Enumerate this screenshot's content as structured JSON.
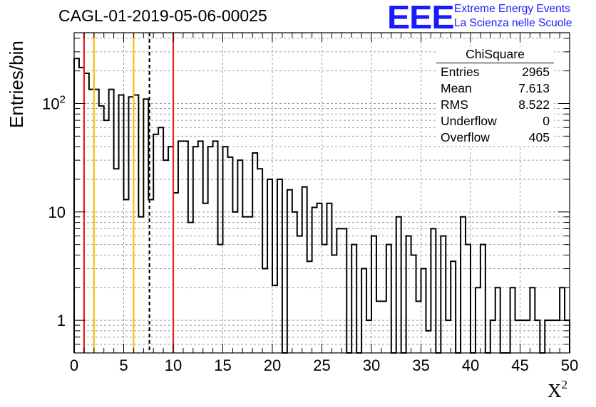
{
  "chart_data": {
    "type": "histogram",
    "title": "CAGL-01-2019-05-06-00025",
    "xlabel": "X",
    "xlabel_superscript": "2",
    "ylabel": "Entries/bin",
    "x_range": [
      0,
      50
    ],
    "y_range": [
      0.5,
      450
    ],
    "y_scale": "log",
    "bin_width": 0.5,
    "grid": true,
    "x_ticks": [
      "0",
      "5",
      "10",
      "15",
      "20",
      "25",
      "30",
      "35",
      "40",
      "45",
      "50"
    ],
    "y_ticks": [
      {
        "value": 1,
        "label": "1"
      },
      {
        "value": 10,
        "label": "10"
      },
      {
        "value": 100,
        "label": "10",
        "exp": "2"
      }
    ],
    "bin_values": [
      260,
      215,
      190,
      135,
      135,
      95,
      70,
      135,
      25,
      120,
      13,
      115,
      120,
      9,
      110,
      13,
      52,
      60,
      30,
      40,
      15,
      45,
      45,
      8,
      40,
      45,
      12,
      40,
      45,
      5,
      40,
      32,
      10,
      30,
      9,
      9,
      35,
      25,
      3,
      20,
      2.1,
      20,
      0.2,
      16,
      10,
      6,
      17,
      3.5,
      11,
      12,
      5,
      12,
      4,
      7,
      7,
      0.2,
      5,
      0.2,
      3,
      1,
      6,
      1.5,
      1.5,
      5,
      0.2,
      9,
      0.2,
      6,
      4,
      1.5,
      3,
      0.8,
      7,
      0.5,
      6,
      1,
      3.5,
      0.2,
      9,
      5,
      0.2,
      2,
      5,
      0.2,
      1,
      2,
      0.2,
      0.2,
      2,
      1,
      1,
      1,
      2,
      1,
      0.2,
      1,
      1,
      1,
      2,
      1
    ],
    "vertical_lines": [
      {
        "x": 1.0,
        "color": "#e8221e",
        "style": "solid"
      },
      {
        "x": 2.0,
        "color": "#f2c10f",
        "style": "solid"
      },
      {
        "x": 6.0,
        "color": "#f2c10f",
        "style": "solid"
      },
      {
        "x": 7.6,
        "color": "#000000",
        "style": "dashed"
      },
      {
        "x": 10.0,
        "color": "#e8221e",
        "style": "solid"
      }
    ]
  },
  "logo": {
    "text": "EEE",
    "line1": "Extreme Energy Events",
    "line2": "La Scienza nelle Scuole",
    "color": "#1a1aff"
  },
  "stats": {
    "title": "ChiSquare",
    "rows": [
      {
        "label": "Entries",
        "value": "2965"
      },
      {
        "label": "Mean",
        "value": "7.613"
      },
      {
        "label": "RMS",
        "value": "8.522"
      },
      {
        "label": "Underflow",
        "value": "0"
      },
      {
        "label": "Overflow",
        "value": "405"
      }
    ]
  }
}
